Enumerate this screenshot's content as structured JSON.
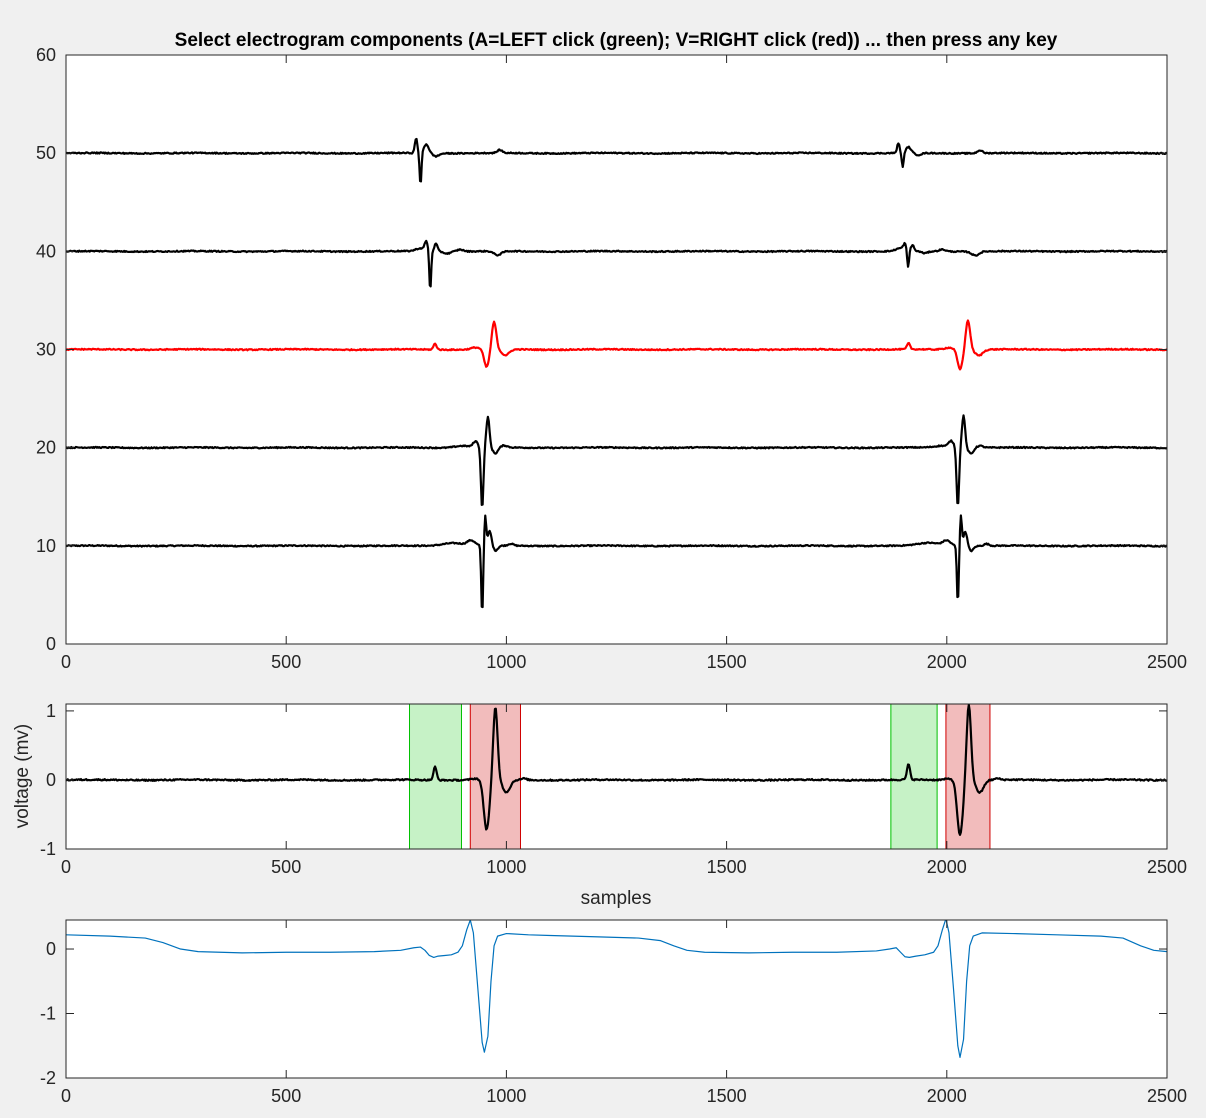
{
  "chart_data": [
    {
      "type": "line",
      "title": "Select electrogram components (A=LEFT click (green); V=RIGHT click (red)) ... then press any key",
      "xlabel": "",
      "ylabel": "",
      "xlim": [
        0,
        2500
      ],
      "ylim": [
        0,
        60
      ],
      "xticks": [
        "0",
        "500",
        "1000",
        "1500",
        "2000",
        "2500"
      ],
      "yticks": [
        "0",
        "10",
        "20",
        "30",
        "40",
        "50",
        "60"
      ],
      "grid": false,
      "series": [
        {
          "color": "#000000",
          "offset": 10,
          "noise": 0.06,
          "events": [
            {
              "c": 880,
              "a": 0.3,
              "w": 35
            },
            {
              "c": 920,
              "a": 0.5,
              "w": 12
            },
            {
              "c": 945,
              "a": -7.0,
              "w": 3
            },
            {
              "c": 952,
              "a": 3.0,
              "w": 3
            },
            {
              "c": 962,
              "a": 1.5,
              "w": 6
            },
            {
              "c": 975,
              "a": -0.5,
              "w": 8
            },
            {
              "c": 1010,
              "a": 0.2,
              "w": 8
            },
            {
              "c": 1960,
              "a": 0.3,
              "w": 35
            },
            {
              "c": 2000,
              "a": 0.5,
              "w": 12
            },
            {
              "c": 2025,
              "a": -5.8,
              "w": 3
            },
            {
              "c": 2032,
              "a": 3.0,
              "w": 3
            },
            {
              "c": 2042,
              "a": 1.5,
              "w": 6
            },
            {
              "c": 2055,
              "a": -0.5,
              "w": 8
            },
            {
              "c": 2090,
              "a": 0.2,
              "w": 8
            }
          ]
        },
        {
          "color": "#000000",
          "offset": 20,
          "noise": 0.06,
          "events": [
            {
              "c": 900,
              "a": 0.2,
              "w": 25
            },
            {
              "c": 930,
              "a": 0.6,
              "w": 8
            },
            {
              "c": 945,
              "a": -6.2,
              "w": 4
            },
            {
              "c": 958,
              "a": 3.1,
              "w": 5
            },
            {
              "c": 975,
              "a": -0.6,
              "w": 8
            },
            {
              "c": 995,
              "a": 0.2,
              "w": 10
            },
            {
              "c": 1990,
              "a": 0.2,
              "w": 25
            },
            {
              "c": 2010,
              "a": 0.6,
              "w": 8
            },
            {
              "c": 2025,
              "a": -6.0,
              "w": 4
            },
            {
              "c": 2038,
              "a": 3.3,
              "w": 5
            },
            {
              "c": 2055,
              "a": -0.6,
              "w": 8
            },
            {
              "c": 2075,
              "a": 0.2,
              "w": 10
            }
          ]
        },
        {
          "color": "#ff0000",
          "offset": 30,
          "noise": 0.06,
          "events": [
            {
              "c": 838,
              "a": 0.6,
              "w": 5
            },
            {
              "c": 930,
              "a": 0.2,
              "w": 15
            },
            {
              "c": 955,
              "a": -1.8,
              "w": 8
            },
            {
              "c": 972,
              "a": 2.8,
              "w": 7
            },
            {
              "c": 998,
              "a": -0.6,
              "w": 12
            },
            {
              "c": 1913,
              "a": 0.6,
              "w": 5
            },
            {
              "c": 2005,
              "a": 0.2,
              "w": 15
            },
            {
              "c": 2030,
              "a": -2.0,
              "w": 8
            },
            {
              "c": 2048,
              "a": 3.0,
              "w": 7
            },
            {
              "c": 2073,
              "a": -0.6,
              "w": 12
            }
          ]
        },
        {
          "color": "#000000",
          "offset": 40,
          "noise": 0.06,
          "events": [
            {
              "c": 805,
              "a": 0.3,
              "w": 15
            },
            {
              "c": 818,
              "a": 0.9,
              "w": 5
            },
            {
              "c": 827,
              "a": -4.0,
              "w": 3
            },
            {
              "c": 840,
              "a": 0.8,
              "w": 5
            },
            {
              "c": 865,
              "a": -0.2,
              "w": 10
            },
            {
              "c": 980,
              "a": -0.4,
              "w": 12
            },
            {
              "c": 895,
              "a": 0.2,
              "w": 10
            },
            {
              "c": 1895,
              "a": 0.3,
              "w": 15
            },
            {
              "c": 1905,
              "a": 0.6,
              "w": 5
            },
            {
              "c": 1912,
              "a": -1.8,
              "w": 3
            },
            {
              "c": 1922,
              "a": 0.6,
              "w": 5
            },
            {
              "c": 1950,
              "a": -0.2,
              "w": 10
            },
            {
              "c": 2065,
              "a": -0.4,
              "w": 12
            },
            {
              "c": 1990,
              "a": 0.2,
              "w": 10
            }
          ]
        },
        {
          "color": "#000000",
          "offset": 50,
          "noise": 0.06,
          "events": [
            {
              "c": 795,
              "a": 1.5,
              "w": 4
            },
            {
              "c": 805,
              "a": -3.3,
              "w": 3
            },
            {
              "c": 818,
              "a": 0.9,
              "w": 8
            },
            {
              "c": 840,
              "a": -0.3,
              "w": 10
            },
            {
              "c": 985,
              "a": 0.3,
              "w": 8
            },
            {
              "c": 1890,
              "a": 1.0,
              "w": 4
            },
            {
              "c": 1900,
              "a": -1.5,
              "w": 3
            },
            {
              "c": 1913,
              "a": 0.6,
              "w": 8
            },
            {
              "c": 1935,
              "a": -0.2,
              "w": 10
            },
            {
              "c": 2075,
              "a": 0.3,
              "w": 8
            }
          ]
        }
      ]
    },
    {
      "type": "line",
      "title": "",
      "xlabel": "samples",
      "ylabel": "voltage (mv)",
      "xlim": [
        0,
        2500
      ],
      "ylim": [
        -1,
        1.1
      ],
      "xticks": [
        "0",
        "500",
        "1000",
        "1500",
        "2000",
        "2500"
      ],
      "yticks": [
        "-1",
        "0",
        "1"
      ],
      "grid": false,
      "regions": [
        {
          "x0": 780,
          "x1": 898,
          "color": "#00c000",
          "label": "A"
        },
        {
          "x0": 918,
          "x1": 1032,
          "color": "#d00000",
          "label": "V"
        },
        {
          "x0": 1873,
          "x1": 1978,
          "color": "#00c000",
          "label": "A"
        },
        {
          "x0": 1998,
          "x1": 2098,
          "color": "#d00000",
          "label": "V"
        }
      ],
      "series": [
        {
          "color": "#000000",
          "offset": 0,
          "noise": 0.01,
          "events": [
            {
              "c": 838,
              "a": 0.19,
              "w": 5
            },
            {
              "c": 930,
              "a": 0.02,
              "w": 15
            },
            {
              "c": 955,
              "a": -0.72,
              "w": 9
            },
            {
              "c": 975,
              "a": 1.05,
              "w": 7
            },
            {
              "c": 1000,
              "a": -0.18,
              "w": 12
            },
            {
              "c": 1040,
              "a": 0.02,
              "w": 8
            },
            {
              "c": 1913,
              "a": 0.22,
              "w": 5
            },
            {
              "c": 2005,
              "a": 0.02,
              "w": 15
            },
            {
              "c": 2030,
              "a": -0.8,
              "w": 9
            },
            {
              "c": 2050,
              "a": 1.1,
              "w": 7
            },
            {
              "c": 2075,
              "a": -0.18,
              "w": 12
            },
            {
              "c": 2115,
              "a": 0.02,
              "w": 8
            }
          ]
        }
      ]
    },
    {
      "type": "line",
      "title": "",
      "xlabel": "",
      "ylabel": "",
      "xlim": [
        0,
        2500
      ],
      "ylim": [
        -2,
        0.45
      ],
      "xticks": [
        "0",
        "500",
        "1000",
        "1500",
        "2000",
        "2500"
      ],
      "yticks": [
        "-2",
        "-1",
        "0"
      ],
      "grid": false,
      "series": [
        {
          "color": "#0072bd",
          "points": [
            [
              0,
              0.22
            ],
            [
              100,
              0.2
            ],
            [
              180,
              0.17
            ],
            [
              220,
              0.1
            ],
            [
              260,
              0.0
            ],
            [
              300,
              -0.04
            ],
            [
              400,
              -0.06
            ],
            [
              500,
              -0.05
            ],
            [
              600,
              -0.05
            ],
            [
              700,
              -0.04
            ],
            [
              760,
              -0.02
            ],
            [
              790,
              0.02
            ],
            [
              805,
              0.03
            ],
            [
              815,
              -0.02
            ],
            [
              825,
              -0.1
            ],
            [
              835,
              -0.13
            ],
            [
              845,
              -0.11
            ],
            [
              860,
              -0.1
            ],
            [
              875,
              -0.09
            ],
            [
              890,
              -0.05
            ],
            [
              900,
              0.05
            ],
            [
              910,
              0.3
            ],
            [
              918,
              0.45
            ],
            [
              925,
              0.25
            ],
            [
              935,
              -0.6
            ],
            [
              945,
              -1.45
            ],
            [
              950,
              -1.6
            ],
            [
              958,
              -1.35
            ],
            [
              965,
              -0.5
            ],
            [
              972,
              0.05
            ],
            [
              980,
              0.2
            ],
            [
              1000,
              0.24
            ],
            [
              1050,
              0.22
            ],
            [
              1100,
              0.21
            ],
            [
              1200,
              0.19
            ],
            [
              1300,
              0.17
            ],
            [
              1350,
              0.13
            ],
            [
              1380,
              0.05
            ],
            [
              1410,
              -0.02
            ],
            [
              1450,
              -0.05
            ],
            [
              1550,
              -0.06
            ],
            [
              1650,
              -0.05
            ],
            [
              1750,
              -0.05
            ],
            [
              1840,
              -0.03
            ],
            [
              1870,
              0.0
            ],
            [
              1885,
              0.02
            ],
            [
              1895,
              -0.05
            ],
            [
              1905,
              -0.12
            ],
            [
              1915,
              -0.13
            ],
            [
              1930,
              -0.11
            ],
            [
              1950,
              -0.09
            ],
            [
              1970,
              -0.05
            ],
            [
              1980,
              0.05
            ],
            [
              1990,
              0.3
            ],
            [
              1998,
              0.47
            ],
            [
              2005,
              0.25
            ],
            [
              2015,
              -0.6
            ],
            [
              2025,
              -1.5
            ],
            [
              2030,
              -1.68
            ],
            [
              2038,
              -1.4
            ],
            [
              2045,
              -0.5
            ],
            [
              2052,
              0.05
            ],
            [
              2060,
              0.2
            ],
            [
              2080,
              0.25
            ],
            [
              2150,
              0.24
            ],
            [
              2250,
              0.22
            ],
            [
              2350,
              0.2
            ],
            [
              2400,
              0.17
            ],
            [
              2440,
              0.05
            ],
            [
              2470,
              -0.02
            ],
            [
              2500,
              -0.04
            ]
          ]
        }
      ]
    }
  ]
}
